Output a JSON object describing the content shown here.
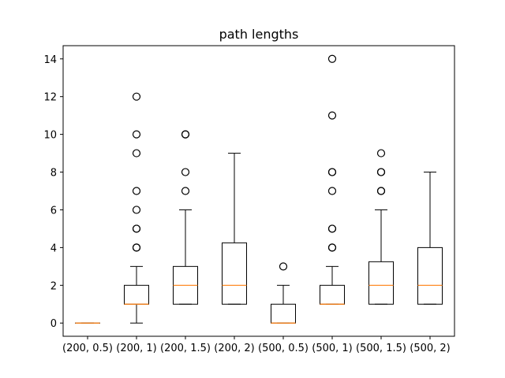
{
  "chart_data": {
    "type": "boxplot",
    "title": "path lengths",
    "xlabel": "",
    "ylabel": "",
    "ylim": [
      -0.7,
      14.7
    ],
    "yticks": [
      0,
      2,
      4,
      6,
      8,
      10,
      12,
      14
    ],
    "grid": false,
    "categories": [
      "(200, 0.5)",
      "(200, 1)",
      "(200, 1.5)",
      "(200, 2)",
      "(500, 0.5)",
      "(500, 1)",
      "(500, 1.5)",
      "(500, 2)"
    ],
    "boxes": [
      {
        "whisker_low": 0,
        "q1": 0,
        "median": 0,
        "q3": 0,
        "whisker_high": 0,
        "outliers": []
      },
      {
        "whisker_low": 0,
        "q1": 1,
        "median": 1,
        "q3": 2,
        "whisker_high": 3,
        "outliers": [
          4,
          4,
          5,
          5,
          6,
          7,
          9,
          10,
          12
        ]
      },
      {
        "whisker_low": 1,
        "q1": 1,
        "median": 2,
        "q3": 3,
        "whisker_high": 6,
        "outliers": [
          7,
          8,
          10,
          10
        ]
      },
      {
        "whisker_low": 1,
        "q1": 1,
        "median": 2,
        "q3": 4.25,
        "whisker_high": 9,
        "outliers": []
      },
      {
        "whisker_low": 0,
        "q1": 0,
        "median": 0,
        "q3": 1,
        "whisker_high": 2,
        "outliers": [
          3
        ]
      },
      {
        "whisker_low": 1,
        "q1": 1,
        "median": 1,
        "q3": 2,
        "whisker_high": 3,
        "outliers": [
          4,
          4,
          5,
          5,
          7,
          8,
          8,
          11,
          14
        ]
      },
      {
        "whisker_low": 1,
        "q1": 1,
        "median": 2,
        "q3": 3.25,
        "whisker_high": 6,
        "outliers": [
          7,
          7,
          8,
          8,
          9
        ]
      },
      {
        "whisker_low": 1,
        "q1": 1,
        "median": 2,
        "q3": 4,
        "whisker_high": 8,
        "outliers": []
      }
    ],
    "colors": {
      "box": "#000000",
      "median": "#ff7f0e",
      "outlier": "#000000"
    }
  }
}
